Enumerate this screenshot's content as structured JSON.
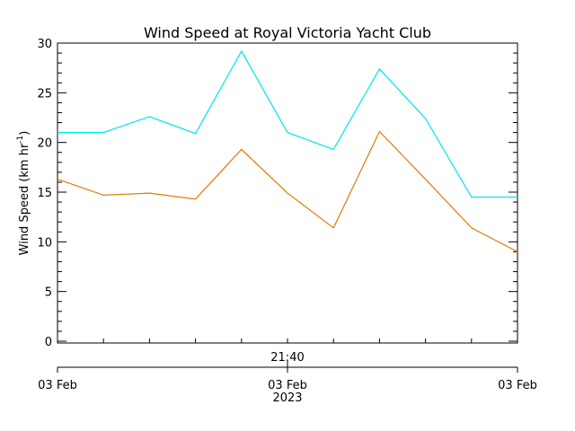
{
  "chart_data": {
    "type": "line",
    "title": "Wind Speed at Royal Victoria Yacht Club",
    "ylabel": "Wind Speed (km hr",
    "ylabel_sup": "-1",
    "ylabel_close": ")",
    "ylim": [
      0,
      30
    ],
    "yticks": [
      0,
      5,
      10,
      15,
      20,
      25,
      30
    ],
    "y_minor_step": 1,
    "x_count": 11,
    "time_tick_label": "21:40",
    "date_ticks": [
      {
        "pos": 0,
        "label": "03 Feb"
      },
      {
        "pos": 5,
        "label": "03 Feb",
        "sublabel": "2023"
      },
      {
        "pos": 10,
        "label": "03 Feb"
      }
    ],
    "series": [
      {
        "color": "#00e5ee",
        "values": [
          21.0,
          21.0,
          22.6,
          20.9,
          29.2,
          21.0,
          19.3,
          27.4,
          22.4,
          14.5,
          14.5
        ]
      },
      {
        "color": "#e07b00",
        "values": [
          16.3,
          14.7,
          14.9,
          14.3,
          19.3,
          14.9,
          11.4,
          21.1,
          16.3,
          11.4,
          9.0
        ]
      }
    ]
  }
}
